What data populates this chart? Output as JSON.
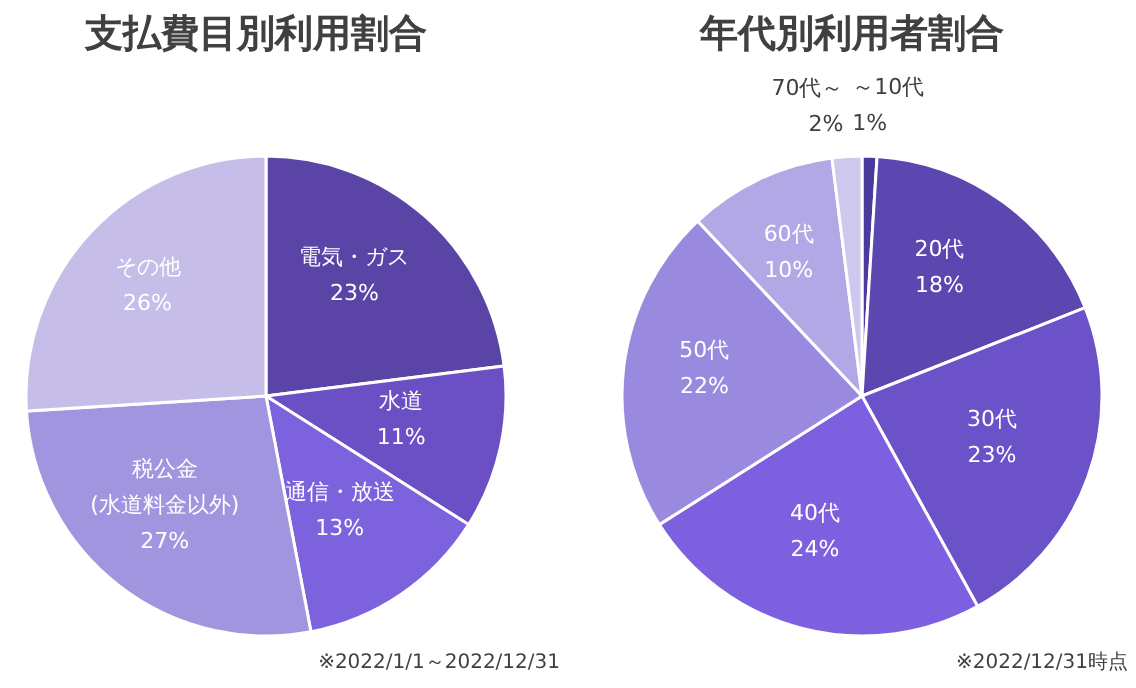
{
  "chart_data": [
    {
      "type": "pie",
      "title": "支払費目別利用割合",
      "categories": [
        "電気・ガス",
        "水道",
        "通信・放送",
        "税公金\n(水道料金以外)",
        "その他"
      ],
      "values": [
        23,
        11,
        13,
        27,
        26
      ],
      "colors": [
        "#5a44a6",
        "#6a50c4",
        "#7c62dc",
        "#a295e0",
        "#c6bee9"
      ],
      "value_labels": [
        "23%",
        "11%",
        "13%",
        "27%",
        "26%"
      ],
      "annotations": [
        "※2022/1/1～2022/12/31"
      ]
    },
    {
      "type": "pie",
      "title": "年代別利用者割合",
      "categories": [
        "～10代",
        "20代",
        "30代",
        "40代",
        "50代",
        "60代",
        "70代～"
      ],
      "values": [
        1,
        18,
        23,
        24,
        22,
        10,
        2
      ],
      "colors": [
        "#4a3a9c",
        "#5c46b0",
        "#6b52c8",
        "#7d60e0",
        "#9a8adf",
        "#b3a8e6",
        "#cfc8ee"
      ],
      "value_labels": [
        "1%",
        "18%",
        "23%",
        "24%",
        "22%",
        "10%",
        "2%"
      ],
      "annotations": [
        "※2022/12/31時点"
      ]
    }
  ]
}
